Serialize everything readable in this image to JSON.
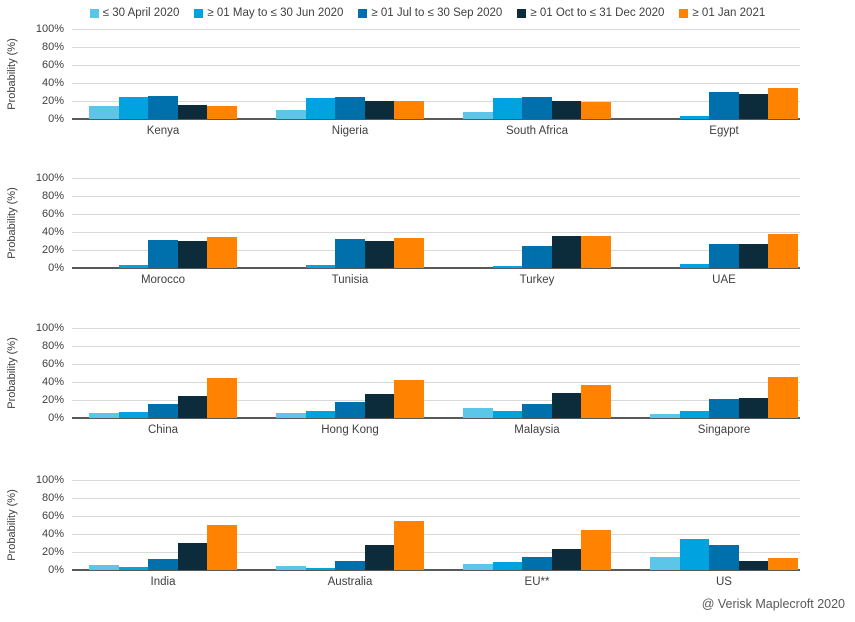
{
  "legend": [
    {
      "label": "≤ 30 April 2020",
      "color": "#5BC6E8"
    },
    {
      "label": "≥ 01 May to ≤ 30 Jun 2020",
      "color": "#00A3E0"
    },
    {
      "label": "≥ 01 Jul to ≤ 30 Sep 2020",
      "color": "#0070AD"
    },
    {
      "label": "≥ 01 Oct to ≤ 31 Dec 2020",
      "color": "#0C2B3B"
    },
    {
      "label": "≥ 01 Jan 2021",
      "color": "#FF8200"
    }
  ],
  "y_axis": {
    "label": "Probability (%)",
    "ticks": [
      "100%",
      "80%",
      "60%",
      "40%",
      "20%",
      "0%"
    ]
  },
  "footer": {
    "credit": "@ Verisk Maplecroft 2020"
  },
  "colors": {
    "gridline": "#d9d9d9",
    "axis": "#595959",
    "text": "#404040"
  },
  "chart_data": [
    {
      "type": "bar",
      "categories": [
        "Kenya",
        "Nigeria",
        "South Africa",
        "Egypt"
      ],
      "series": [
        {
          "name": "≤ 30 April 2020",
          "color": "#5BC6E8",
          "values": [
            14,
            10,
            8,
            0
          ]
        },
        {
          "name": "≥ 01 May to ≤ 30 Jun 2020",
          "color": "#00A3E0",
          "values": [
            25,
            23,
            23,
            3
          ]
        },
        {
          "name": "≥ 01 Jul to ≤ 30 Sep 2020",
          "color": "#0070AD",
          "values": [
            26,
            24,
            25,
            30
          ]
        },
        {
          "name": "≥ 01 Oct to ≤ 31 Dec 2020",
          "color": "#0C2B3B",
          "values": [
            16,
            20,
            20,
            28
          ]
        },
        {
          "name": "≥ 01 Jan 2021",
          "color": "#FF8200",
          "values": [
            15,
            20,
            19,
            35
          ]
        }
      ],
      "ylabel": "Probability (%)",
      "ylim": [
        0,
        100
      ],
      "grid": true,
      "legend_position": "top"
    },
    {
      "type": "bar",
      "categories": [
        "Morocco",
        "Tunisia",
        "Turkey",
        "UAE"
      ],
      "series": [
        {
          "name": "≤ 30 April 2020",
          "color": "#5BC6E8",
          "values": [
            0,
            0,
            0,
            0
          ]
        },
        {
          "name": "≥ 01 May to ≤ 30 Jun 2020",
          "color": "#00A3E0",
          "values": [
            3,
            3,
            2,
            4
          ]
        },
        {
          "name": "≥ 01 Jul to ≤ 30 Sep 2020",
          "color": "#0070AD",
          "values": [
            31,
            32,
            24,
            27
          ]
        },
        {
          "name": "≥ 01 Oct to ≤ 31 Dec 2020",
          "color": "#0C2B3B",
          "values": [
            30,
            30,
            36,
            27
          ]
        },
        {
          "name": "≥ 01 Jan 2021",
          "color": "#FF8200",
          "values": [
            34,
            33,
            36,
            38
          ]
        }
      ],
      "ylabel": "Probability (%)",
      "ylim": [
        0,
        100
      ],
      "grid": true,
      "legend_position": "top"
    },
    {
      "type": "bar",
      "categories": [
        "China",
        "Hong Kong",
        "Malaysia",
        "Singapore"
      ],
      "series": [
        {
          "name": "≤ 30 April 2020",
          "color": "#5BC6E8",
          "values": [
            6,
            6,
            11,
            5
          ]
        },
        {
          "name": "≥ 01 May to ≤ 30 Jun 2020",
          "color": "#00A3E0",
          "values": [
            7,
            8,
            8,
            8
          ]
        },
        {
          "name": "≥ 01 Jul to ≤ 30 Sep 2020",
          "color": "#0070AD",
          "values": [
            16,
            18,
            16,
            21
          ]
        },
        {
          "name": "≥ 01 Oct to ≤ 31 Dec 2020",
          "color": "#0C2B3B",
          "values": [
            25,
            27,
            28,
            22
          ]
        },
        {
          "name": "≥ 01 Jan 2021",
          "color": "#FF8200",
          "values": [
            44,
            42,
            37,
            46
          ]
        }
      ],
      "ylabel": "Probability (%)",
      "ylim": [
        0,
        100
      ],
      "grid": true,
      "legend_position": "top"
    },
    {
      "type": "bar",
      "categories": [
        "India",
        "Australia",
        "EU**",
        "US"
      ],
      "series": [
        {
          "name": "≤ 30 April 2020",
          "color": "#5BC6E8",
          "values": [
            6,
            5,
            7,
            14
          ]
        },
        {
          "name": "≥ 01 May to ≤ 30 Jun 2020",
          "color": "#00A3E0",
          "values": [
            3,
            2,
            9,
            35
          ]
        },
        {
          "name": "≥ 01 Jul to ≤ 30 Sep 2020",
          "color": "#0070AD",
          "values": [
            12,
            10,
            14,
            28
          ]
        },
        {
          "name": "≥ 01 Oct to ≤ 31 Dec 2020",
          "color": "#0C2B3B",
          "values": [
            30,
            28,
            23,
            10
          ]
        },
        {
          "name": "≥ 01 Jan 2021",
          "color": "#FF8200",
          "values": [
            50,
            54,
            45,
            13
          ]
        }
      ],
      "ylabel": "Probability (%)",
      "ylim": [
        0,
        100
      ],
      "grid": true,
      "legend_position": "top"
    }
  ]
}
